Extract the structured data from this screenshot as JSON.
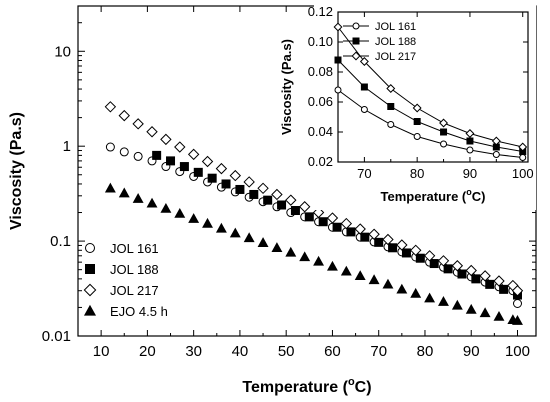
{
  "chart_data": [
    {
      "type": "scatter",
      "xlabel": "Temperature (",
      "xlabel_sup": "o",
      "xlabel_end": "C)",
      "ylabel": "Viscosity (Pa.s)",
      "xlim": [
        5,
        104
      ],
      "ylim": [
        0.01,
        30
      ],
      "yscale": "log",
      "xticks": [
        10,
        20,
        30,
        40,
        50,
        60,
        70,
        80,
        90,
        100
      ],
      "yticks": [
        0.01,
        0.1,
        1,
        10
      ],
      "ytick_labels": [
        "0.01",
        "0.1",
        "1",
        "10"
      ],
      "legend_position": "bottom-left",
      "series": [
        {
          "name": "JOL 161",
          "marker": "circle-open",
          "x": [
            12,
            15,
            18,
            21,
            24,
            27,
            30,
            33,
            36,
            39,
            42,
            45,
            48,
            51,
            54,
            57,
            60,
            63,
            66,
            69,
            72,
            75,
            78,
            81,
            84,
            87,
            90,
            93,
            96,
            99,
            100
          ],
          "y": [
            0.98,
            0.87,
            0.78,
            0.7,
            0.61,
            0.54,
            0.48,
            0.42,
            0.37,
            0.33,
            0.29,
            0.26,
            0.23,
            0.2,
            0.18,
            0.16,
            0.14,
            0.125,
            0.11,
            0.098,
            0.087,
            0.077,
            0.068,
            0.06,
            0.053,
            0.047,
            0.042,
            0.037,
            0.033,
            0.03,
            0.022
          ]
        },
        {
          "name": "JOL 188",
          "marker": "square-filled",
          "x": [
            22,
            25,
            28,
            31,
            34,
            37,
            40,
            43,
            46,
            49,
            52,
            55,
            58,
            61,
            64,
            67,
            70,
            73,
            76,
            79,
            82,
            85,
            88,
            91,
            94,
            97,
            100
          ],
          "y": [
            0.8,
            0.7,
            0.61,
            0.53,
            0.46,
            0.4,
            0.35,
            0.31,
            0.27,
            0.24,
            0.21,
            0.18,
            0.16,
            0.14,
            0.125,
            0.11,
            0.097,
            0.085,
            0.075,
            0.066,
            0.058,
            0.051,
            0.045,
            0.04,
            0.035,
            0.031,
            0.027
          ]
        },
        {
          "name": "JOL 217",
          "marker": "diamond-open",
          "x": [
            12,
            15,
            18,
            21,
            24,
            27,
            30,
            33,
            36,
            39,
            42,
            45,
            48,
            51,
            54,
            57,
            60,
            63,
            66,
            69,
            72,
            75,
            78,
            81,
            84,
            87,
            90,
            93,
            96,
            99,
            100
          ],
          "y": [
            2.6,
            2.1,
            1.72,
            1.42,
            1.18,
            0.98,
            0.82,
            0.69,
            0.58,
            0.49,
            0.42,
            0.36,
            0.31,
            0.27,
            0.23,
            0.2,
            0.175,
            0.153,
            0.134,
            0.118,
            0.104,
            0.091,
            0.08,
            0.07,
            0.062,
            0.055,
            0.049,
            0.043,
            0.038,
            0.034,
            0.03
          ]
        },
        {
          "name": "EJO 4.5 h",
          "marker": "triangle-filled",
          "x": [
            12,
            15,
            18,
            21,
            24,
            27,
            30,
            33,
            36,
            39,
            42,
            45,
            48,
            51,
            54,
            57,
            60,
            63,
            66,
            69,
            72,
            75,
            78,
            81,
            84,
            87,
            90,
            93,
            96,
            99,
            100
          ],
          "y": [
            0.36,
            0.32,
            0.28,
            0.25,
            0.22,
            0.195,
            0.172,
            0.153,
            0.136,
            0.121,
            0.108,
            0.096,
            0.085,
            0.076,
            0.068,
            0.061,
            0.054,
            0.048,
            0.043,
            0.039,
            0.035,
            0.031,
            0.028,
            0.025,
            0.023,
            0.021,
            0.019,
            0.0175,
            0.016,
            0.0148,
            0.0145
          ]
        }
      ]
    },
    {
      "type": "line",
      "xlabel": "Temperature (",
      "xlabel_sup": "o",
      "xlabel_end": "C)",
      "ylabel": "Viscosity (Pa.s)",
      "xlim": [
        65,
        101
      ],
      "ylim": [
        0.02,
        0.12
      ],
      "xticks": [
        70,
        80,
        90,
        100
      ],
      "yticks": [
        0.02,
        0.04,
        0.06,
        0.08,
        0.1,
        0.12
      ],
      "ytick_labels": [
        "0.02",
        "0.04",
        "0.06",
        "0.08",
        "0.10",
        "0.12"
      ],
      "legend_position": "top-left",
      "series": [
        {
          "name": "JOL 161",
          "marker": "circle-open",
          "x": [
            65,
            70,
            75,
            80,
            85,
            90,
            95,
            100
          ],
          "y": [
            0.068,
            0.055,
            0.045,
            0.037,
            0.032,
            0.028,
            0.025,
            0.023
          ]
        },
        {
          "name": "JOL 188",
          "marker": "square-filled",
          "x": [
            65,
            70,
            75,
            80,
            85,
            90,
            95,
            100
          ],
          "y": [
            0.088,
            0.07,
            0.057,
            0.047,
            0.04,
            0.034,
            0.03,
            0.027
          ]
        },
        {
          "name": "JOL 217",
          "marker": "diamond-open",
          "x": [
            65,
            70,
            75,
            80,
            85,
            90,
            95,
            100
          ],
          "y": [
            0.11,
            0.087,
            0.069,
            0.056,
            0.046,
            0.039,
            0.034,
            0.03
          ]
        }
      ]
    }
  ]
}
